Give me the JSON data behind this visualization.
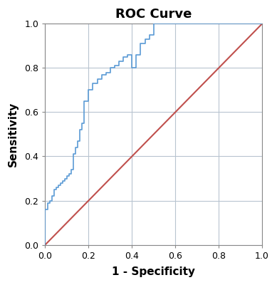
{
  "title": "ROC Curve",
  "xlabel": "1 - Specificity",
  "ylabel": "Sensitivity",
  "xlim": [
    0.0,
    1.0
  ],
  "ylim": [
    0.0,
    1.0
  ],
  "xticks": [
    0.0,
    0.2,
    0.4,
    0.6,
    0.8,
    1.0
  ],
  "yticks": [
    0.0,
    0.2,
    0.4,
    0.6,
    0.8,
    1.0
  ],
  "roc_color": "#5B9BD5",
  "diag_color": "#C0504D",
  "background_color": "#FFFFFF",
  "grid_color": "#B8C4D0",
  "title_fontsize": 13,
  "label_fontsize": 11,
  "tick_fontsize": 9,
  "roc_x": [
    0.0,
    0.0,
    0.01,
    0.01,
    0.02,
    0.02,
    0.03,
    0.03,
    0.04,
    0.04,
    0.05,
    0.05,
    0.06,
    0.06,
    0.07,
    0.07,
    0.08,
    0.08,
    0.09,
    0.09,
    0.1,
    0.1,
    0.11,
    0.11,
    0.12,
    0.12,
    0.13,
    0.13,
    0.14,
    0.14,
    0.15,
    0.15,
    0.16,
    0.16,
    0.17,
    0.17,
    0.18,
    0.18,
    0.2,
    0.2,
    0.22,
    0.22,
    0.24,
    0.24,
    0.26,
    0.26,
    0.28,
    0.28,
    0.3,
    0.3,
    0.32,
    0.32,
    0.34,
    0.34,
    0.36,
    0.36,
    0.38,
    0.38,
    0.4,
    0.4,
    0.42,
    0.42,
    0.44,
    0.44,
    0.46,
    0.46,
    0.48,
    0.48,
    0.5,
    0.5,
    0.6,
    0.6,
    1.0
  ],
  "roc_y": [
    0.0,
    0.16,
    0.16,
    0.19,
    0.19,
    0.2,
    0.2,
    0.22,
    0.22,
    0.25,
    0.25,
    0.26,
    0.26,
    0.27,
    0.27,
    0.28,
    0.28,
    0.29,
    0.29,
    0.3,
    0.3,
    0.31,
    0.31,
    0.32,
    0.32,
    0.34,
    0.34,
    0.41,
    0.41,
    0.44,
    0.44,
    0.47,
    0.47,
    0.52,
    0.52,
    0.55,
    0.55,
    0.65,
    0.65,
    0.7,
    0.7,
    0.73,
    0.73,
    0.75,
    0.75,
    0.77,
    0.77,
    0.78,
    0.78,
    0.8,
    0.8,
    0.81,
    0.81,
    0.83,
    0.83,
    0.85,
    0.85,
    0.86,
    0.86,
    0.8,
    0.8,
    0.86,
    0.86,
    0.91,
    0.91,
    0.93,
    0.93,
    0.95,
    0.95,
    1.0,
    1.0,
    1.0,
    1.0
  ]
}
